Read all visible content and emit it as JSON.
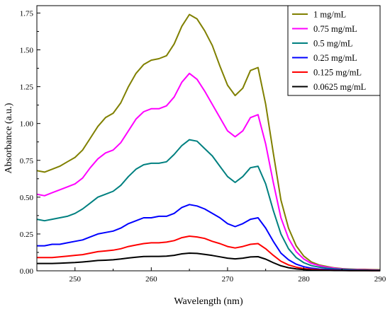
{
  "chart_data": {
    "type": "line",
    "xlabel": "Wavelength (nm)",
    "ylabel": "Absorbance (a.u.)",
    "xlim": [
      245,
      290
    ],
    "ylim": [
      0,
      1.8
    ],
    "xticks": [
      250,
      260,
      270,
      280,
      290
    ],
    "yticks": [
      0.0,
      0.25,
      0.5,
      0.75,
      1.0,
      1.25,
      1.5,
      1.75
    ],
    "ytick_labels": [
      "0.00",
      "0.25",
      "0.50",
      "0.75",
      "1.00",
      "1.25",
      "1.50",
      "1.75"
    ],
    "grid": false,
    "legend_position": "top-right",
    "x": [
      245,
      246,
      247,
      248,
      249,
      250,
      251,
      252,
      253,
      254,
      255,
      256,
      257,
      258,
      259,
      260,
      261,
      262,
      263,
      264,
      265,
      266,
      267,
      268,
      269,
      270,
      271,
      272,
      273,
      274,
      275,
      276,
      277,
      278,
      279,
      280,
      281,
      282,
      283,
      284,
      285,
      286,
      287,
      288,
      289,
      290
    ],
    "series": [
      {
        "name": "1 mg/mL",
        "color": "#808000",
        "values": [
          0.68,
          0.67,
          0.69,
          0.71,
          0.74,
          0.77,
          0.82,
          0.9,
          0.98,
          1.04,
          1.07,
          1.14,
          1.25,
          1.34,
          1.4,
          1.43,
          1.44,
          1.46,
          1.54,
          1.66,
          1.74,
          1.71,
          1.63,
          1.53,
          1.39,
          1.26,
          1.19,
          1.24,
          1.36,
          1.38,
          1.13,
          0.8,
          0.48,
          0.29,
          0.17,
          0.1,
          0.06,
          0.04,
          0.03,
          0.02,
          0.015,
          0.012,
          0.01,
          0.01,
          0.008,
          0.007
        ]
      },
      {
        "name": "0.75 mg/mL",
        "color": "#ff00ff",
        "values": [
          0.52,
          0.51,
          0.53,
          0.55,
          0.57,
          0.59,
          0.63,
          0.7,
          0.76,
          0.8,
          0.82,
          0.87,
          0.95,
          1.03,
          1.08,
          1.1,
          1.1,
          1.12,
          1.18,
          1.28,
          1.34,
          1.3,
          1.22,
          1.13,
          1.04,
          0.95,
          0.91,
          0.95,
          1.04,
          1.06,
          0.86,
          0.6,
          0.36,
          0.22,
          0.13,
          0.08,
          0.05,
          0.035,
          0.025,
          0.018,
          0.013,
          0.01,
          0.008,
          0.007,
          0.006,
          0.005
        ]
      },
      {
        "name": "0.5 mg/mL",
        "color": "#008080",
        "values": [
          0.35,
          0.34,
          0.35,
          0.36,
          0.37,
          0.39,
          0.42,
          0.46,
          0.5,
          0.52,
          0.54,
          0.58,
          0.64,
          0.69,
          0.72,
          0.73,
          0.73,
          0.74,
          0.79,
          0.85,
          0.89,
          0.88,
          0.83,
          0.78,
          0.71,
          0.64,
          0.6,
          0.64,
          0.7,
          0.71,
          0.59,
          0.41,
          0.25,
          0.15,
          0.09,
          0.055,
          0.035,
          0.025,
          0.018,
          0.013,
          0.01,
          0.008,
          0.006,
          0.005,
          0.004,
          0.004
        ]
      },
      {
        "name": "0.25 mg/mL",
        "color": "#0000ff",
        "values": [
          0.17,
          0.17,
          0.18,
          0.18,
          0.19,
          0.2,
          0.21,
          0.23,
          0.25,
          0.26,
          0.27,
          0.29,
          0.32,
          0.34,
          0.36,
          0.36,
          0.37,
          0.37,
          0.39,
          0.43,
          0.45,
          0.44,
          0.42,
          0.39,
          0.36,
          0.32,
          0.3,
          0.32,
          0.35,
          0.36,
          0.29,
          0.2,
          0.12,
          0.075,
          0.045,
          0.028,
          0.018,
          0.012,
          0.009,
          0.007,
          0.005,
          0.004,
          0.003,
          0.003,
          0.002,
          0.002
        ]
      },
      {
        "name": "0.125 mg/mL",
        "color": "#ff0000",
        "values": [
          0.09,
          0.09,
          0.09,
          0.095,
          0.1,
          0.105,
          0.11,
          0.12,
          0.13,
          0.135,
          0.14,
          0.15,
          0.165,
          0.175,
          0.185,
          0.19,
          0.19,
          0.195,
          0.205,
          0.225,
          0.235,
          0.23,
          0.22,
          0.2,
          0.185,
          0.165,
          0.155,
          0.165,
          0.18,
          0.185,
          0.15,
          0.105,
          0.065,
          0.04,
          0.025,
          0.015,
          0.01,
          0.007,
          0.005,
          0.004,
          0.003,
          0.002,
          0.002,
          0.002,
          0.001,
          0.001
        ]
      },
      {
        "name": "0.0625 mg/mL",
        "color": "#000000",
        "values": [
          0.05,
          0.05,
          0.05,
          0.052,
          0.054,
          0.056,
          0.06,
          0.065,
          0.07,
          0.072,
          0.075,
          0.08,
          0.087,
          0.092,
          0.097,
          0.098,
          0.098,
          0.1,
          0.105,
          0.115,
          0.12,
          0.118,
          0.112,
          0.104,
          0.095,
          0.086,
          0.081,
          0.086,
          0.094,
          0.096,
          0.079,
          0.055,
          0.034,
          0.021,
          0.013,
          0.008,
          0.005,
          0.004,
          0.003,
          0.002,
          0.002,
          0.001,
          0.001,
          0.001,
          0.001,
          0.001
        ]
      }
    ]
  }
}
